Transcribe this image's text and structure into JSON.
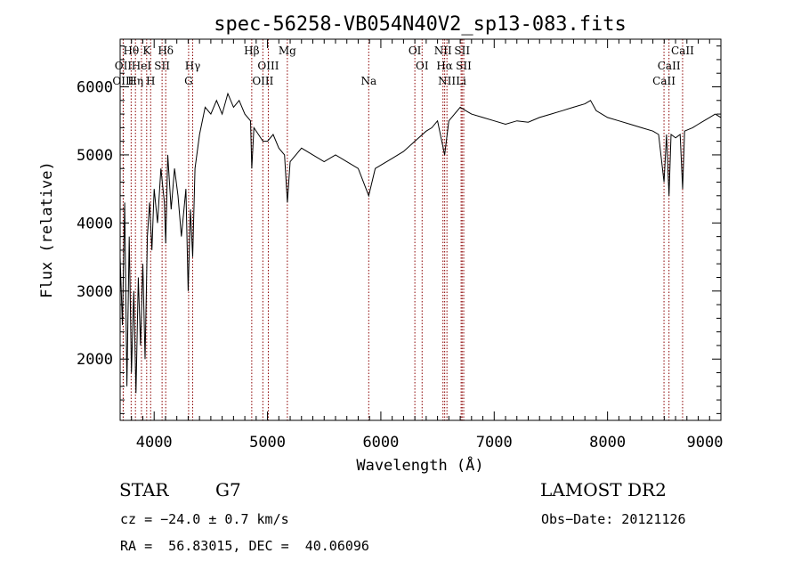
{
  "chart_data": {
    "type": "line",
    "title": "spec-56258-VB054N40V2_sp13-083.fits",
    "xlabel": "Wavelength (Å)",
    "ylabel": "Flux (relative)",
    "xlim": [
      3700,
      9000
    ],
    "ylim": [
      1100,
      6700
    ],
    "x_ticks": [
      4000,
      5000,
      6000,
      7000,
      8000,
      9000
    ],
    "y_ticks": [
      2000,
      3000,
      4000,
      5000,
      6000
    ],
    "grid": false,
    "line_color": "#000000",
    "marker_color": "#8b0000",
    "series": [
      {
        "x": [
          3700,
          3720,
          3740,
          3760,
          3780,
          3800,
          3820,
          3840,
          3860,
          3880,
          3900,
          3920,
          3940,
          3960,
          3980,
          4000,
          4030,
          4060,
          4090,
          4102,
          4120,
          4150,
          4180,
          4210,
          4240,
          4280,
          4300,
          4320,
          4340,
          4360,
          4400,
          4450,
          4500,
          4550,
          4600,
          4650,
          4700,
          4750,
          4800,
          4850,
          4861,
          4880,
          4920,
          4960,
          5000,
          5050,
          5100,
          5150,
          5175,
          5200,
          5300,
          5400,
          5500,
          5600,
          5700,
          5800,
          5893,
          5950,
          6000,
          6100,
          6200,
          6300,
          6400,
          6450,
          6500,
          6563,
          6600,
          6650,
          6700,
          6750,
          6800,
          6900,
          7000,
          7100,
          7200,
          7300,
          7400,
          7500,
          7600,
          7700,
          7800,
          7850,
          7900,
          8000,
          8100,
          8200,
          8300,
          8400,
          8450,
          8498,
          8520,
          8542,
          8560,
          8600,
          8640,
          8662,
          8680,
          8750,
          8800,
          8850,
          8900,
          8950,
          9000
        ],
        "values": [
          3500,
          2500,
          4300,
          1600,
          3800,
          1800,
          3000,
          1500,
          3200,
          2200,
          3400,
          2000,
          3800,
          4300,
          3600,
          4500,
          4000,
          4800,
          4300,
          3700,
          5000,
          4200,
          4800,
          4400,
          3800,
          4500,
          3000,
          4200,
          3500,
          4800,
          5300,
          5700,
          5600,
          5800,
          5600,
          5900,
          5700,
          5800,
          5600,
          5500,
          4800,
          5400,
          5300,
          5200,
          5200,
          5300,
          5100,
          5000,
          4300,
          4900,
          5100,
          5000,
          4900,
          5000,
          4900,
          4800,
          4400,
          4800,
          4850,
          4950,
          5050,
          5200,
          5350,
          5400,
          5500,
          5000,
          5500,
          5600,
          5700,
          5650,
          5600,
          5550,
          5500,
          5450,
          5500,
          5480,
          5550,
          5600,
          5650,
          5700,
          5750,
          5800,
          5650,
          5550,
          5500,
          5450,
          5400,
          5350,
          5300,
          4600,
          5300,
          4400,
          5300,
          5250,
          5300,
          4500,
          5350,
          5400,
          5450,
          5500,
          5550,
          5600,
          5550
        ]
      }
    ],
    "spectral_lines": [
      {
        "label": "Hθ",
        "wavelength": 3797,
        "row": 0
      },
      {
        "label": "K",
        "wavelength": 3934,
        "row": 0
      },
      {
        "label": "Hδ",
        "wavelength": 4102,
        "row": 0
      },
      {
        "label": "Hβ",
        "wavelength": 4861,
        "row": 0
      },
      {
        "label": "Mg",
        "wavelength": 5175,
        "row": 0
      },
      {
        "label": "OI",
        "wavelength": 6300,
        "row": 0
      },
      {
        "label": "NII",
        "wavelength": 6548,
        "row": 0
      },
      {
        "label": "SII",
        "wavelength": 6717,
        "row": 0
      },
      {
        "label": "CaII",
        "wavelength": 8662,
        "row": 0
      },
      {
        "label": "OII",
        "wavelength": 3727,
        "row": 1
      },
      {
        "label": "HeI",
        "wavelength": 3888,
        "row": 1
      },
      {
        "label": "SII",
        "wavelength": 4070,
        "row": 1
      },
      {
        "label": "Hγ",
        "wavelength": 4340,
        "row": 1
      },
      {
        "label": "OIII",
        "wavelength": 5007,
        "row": 1
      },
      {
        "label": "OI",
        "wavelength": 6364,
        "row": 1
      },
      {
        "label": "Hα",
        "wavelength": 6563,
        "row": 1
      },
      {
        "label": "SII",
        "wavelength": 6731,
        "row": 1
      },
      {
        "label": "CaII",
        "wavelength": 8542,
        "row": 1
      },
      {
        "label": "OIII",
        "wavelength": 3727,
        "row": 2
      },
      {
        "label": "Hη",
        "wavelength": 3835,
        "row": 2
      },
      {
        "label": "H",
        "wavelength": 3969,
        "row": 2
      },
      {
        "label": "G",
        "wavelength": 4304,
        "row": 2
      },
      {
        "label": "OIII",
        "wavelength": 4959,
        "row": 2
      },
      {
        "label": "Na",
        "wavelength": 5893,
        "row": 2
      },
      {
        "label": "NII",
        "wavelength": 6583,
        "row": 2
      },
      {
        "label": "Li",
        "wavelength": 6708,
        "row": 2
      },
      {
        "label": "CaII",
        "wavelength": 8498,
        "row": 2
      }
    ]
  },
  "info": {
    "object_class": "STAR",
    "subclass": "G7",
    "survey": "LAMOST DR2",
    "redshift": "cz = −24.0 ± 0.7 km/s",
    "obs_date": "Obs−Date: 20121126",
    "coords": "RA =  56.83015, DEC =  40.06096"
  }
}
